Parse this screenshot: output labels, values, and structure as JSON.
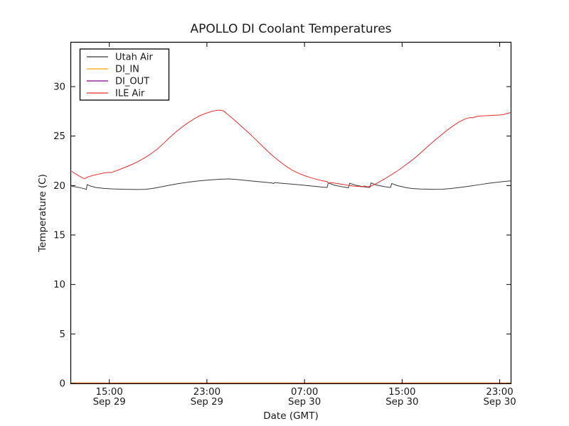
{
  "figure": {
    "background": "#ffffff",
    "axis_color": "#000000",
    "text_color": "#1a1a1a"
  },
  "chart_data": {
    "type": "line",
    "title": "APOLLO DI Coolant Temperatures",
    "xlabel": "Date (GMT)",
    "ylabel": "Temperature (C)",
    "xlim_hours_from_sep29_0000": [
      11.87,
      47.9
    ],
    "ylim": [
      0,
      34.45
    ],
    "grid": false,
    "x_ticks": [
      {
        "hours": 15,
        "time": "15:00",
        "date": "Sep 29"
      },
      {
        "hours": 23,
        "time": "23:00",
        "date": "Sep 29"
      },
      {
        "hours": 31,
        "time": "07:00",
        "date": "Sep 30"
      },
      {
        "hours": 39,
        "time": "15:00",
        "date": "Sep 30"
      },
      {
        "hours": 47,
        "time": "23:00",
        "date": "Sep 30"
      }
    ],
    "y_ticks": [
      0,
      5,
      10,
      15,
      20,
      25,
      30
    ],
    "legend": {
      "position": "upper-left",
      "entries": [
        "Utah Air",
        "DI_IN",
        "DI_OUT",
        "ILE Air"
      ]
    },
    "series": [
      {
        "name": "Utah Air",
        "color": "#3a3a3a",
        "points": [
          [
            11.9,
            19.93
          ],
          [
            12.3,
            19.85
          ],
          [
            12.7,
            19.76
          ],
          [
            13.0,
            19.66
          ],
          [
            13.12,
            19.6
          ],
          [
            13.18,
            20.1
          ],
          [
            13.45,
            19.95
          ],
          [
            13.9,
            19.8
          ],
          [
            14.5,
            19.72
          ],
          [
            15.3,
            19.66
          ],
          [
            16.3,
            19.62
          ],
          [
            17.4,
            19.6
          ],
          [
            18.0,
            19.62
          ],
          [
            18.6,
            19.72
          ],
          [
            19.3,
            19.88
          ],
          [
            20.0,
            20.05
          ],
          [
            20.7,
            20.2
          ],
          [
            21.5,
            20.35
          ],
          [
            22.3,
            20.46
          ],
          [
            23.1,
            20.55
          ],
          [
            24.0,
            20.63
          ],
          [
            24.8,
            20.67
          ],
          [
            25.4,
            20.62
          ],
          [
            26.2,
            20.52
          ],
          [
            27.0,
            20.42
          ],
          [
            27.8,
            20.33
          ],
          [
            28.35,
            20.26
          ],
          [
            28.45,
            20.2
          ],
          [
            28.55,
            20.3
          ],
          [
            29.2,
            20.22
          ],
          [
            30.0,
            20.14
          ],
          [
            30.8,
            20.05
          ],
          [
            31.6,
            19.95
          ],
          [
            32.4,
            19.85
          ],
          [
            32.85,
            19.8
          ],
          [
            32.95,
            20.28
          ],
          [
            33.4,
            20.05
          ],
          [
            34.2,
            19.85
          ],
          [
            34.6,
            19.78
          ],
          [
            34.7,
            20.23
          ],
          [
            35.2,
            20.03
          ],
          [
            35.9,
            19.86
          ],
          [
            36.35,
            19.8
          ],
          [
            36.45,
            20.26
          ],
          [
            36.9,
            20.05
          ],
          [
            37.6,
            19.88
          ],
          [
            38.05,
            19.8
          ],
          [
            38.15,
            20.2
          ],
          [
            38.6,
            20.0
          ],
          [
            39.3,
            19.8
          ],
          [
            39.8,
            19.7
          ],
          [
            40.5,
            19.65
          ],
          [
            41.5,
            19.62
          ],
          [
            42.3,
            19.63
          ],
          [
            43.0,
            19.7
          ],
          [
            43.8,
            19.82
          ],
          [
            44.6,
            19.95
          ],
          [
            45.4,
            20.1
          ],
          [
            46.2,
            20.25
          ],
          [
            46.9,
            20.35
          ],
          [
            47.5,
            20.43
          ],
          [
            47.9,
            20.47
          ]
        ]
      },
      {
        "name": "DI_IN",
        "color": "#ffa500",
        "points": [
          [
            11.87,
            0.0
          ],
          [
            47.9,
            0.0
          ]
        ]
      },
      {
        "name": "DI_OUT",
        "color": "#800080",
        "points": [
          [
            11.87,
            0.0
          ],
          [
            47.9,
            0.0
          ]
        ]
      },
      {
        "name": "ILE Air",
        "color": "#ee2c2c",
        "points": [
          [
            11.9,
            21.45
          ],
          [
            12.2,
            21.2
          ],
          [
            12.55,
            20.95
          ],
          [
            12.85,
            20.75
          ],
          [
            13.0,
            20.7
          ],
          [
            13.2,
            20.85
          ],
          [
            13.6,
            21.0
          ],
          [
            14.1,
            21.15
          ],
          [
            14.6,
            21.28
          ],
          [
            14.95,
            21.33
          ],
          [
            15.1,
            21.3
          ],
          [
            15.4,
            21.42
          ],
          [
            15.9,
            21.65
          ],
          [
            16.4,
            21.9
          ],
          [
            16.9,
            22.15
          ],
          [
            17.4,
            22.45
          ],
          [
            17.9,
            22.8
          ],
          [
            18.4,
            23.2
          ],
          [
            18.9,
            23.65
          ],
          [
            19.4,
            24.2
          ],
          [
            19.9,
            24.8
          ],
          [
            20.4,
            25.35
          ],
          [
            20.9,
            25.85
          ],
          [
            21.4,
            26.3
          ],
          [
            21.9,
            26.7
          ],
          [
            22.4,
            27.05
          ],
          [
            22.9,
            27.3
          ],
          [
            23.4,
            27.5
          ],
          [
            23.8,
            27.6
          ],
          [
            24.1,
            27.62
          ],
          [
            24.35,
            27.55
          ],
          [
            24.6,
            27.3
          ],
          [
            25.0,
            26.9
          ],
          [
            25.5,
            26.35
          ],
          [
            26.0,
            25.8
          ],
          [
            26.5,
            25.25
          ],
          [
            27.0,
            24.65
          ],
          [
            27.5,
            24.05
          ],
          [
            28.0,
            23.45
          ],
          [
            28.5,
            22.9
          ],
          [
            29.0,
            22.4
          ],
          [
            29.5,
            21.95
          ],
          [
            30.0,
            21.55
          ],
          [
            30.5,
            21.25
          ],
          [
            31.0,
            21.0
          ],
          [
            31.5,
            20.8
          ],
          [
            32.0,
            20.62
          ],
          [
            32.5,
            20.48
          ],
          [
            32.85,
            20.4
          ],
          [
            32.95,
            20.25
          ],
          [
            33.2,
            20.3
          ],
          [
            33.6,
            20.22
          ],
          [
            34.1,
            20.12
          ],
          [
            34.6,
            20.02
          ],
          [
            35.0,
            19.95
          ],
          [
            35.4,
            19.92
          ],
          [
            35.7,
            19.87
          ],
          [
            35.9,
            19.97
          ],
          [
            36.1,
            19.88
          ],
          [
            36.4,
            19.92
          ],
          [
            36.7,
            20.08
          ],
          [
            37.0,
            20.28
          ],
          [
            37.4,
            20.55
          ],
          [
            37.8,
            20.85
          ],
          [
            38.2,
            21.15
          ],
          [
            38.7,
            21.55
          ],
          [
            39.2,
            22.0
          ],
          [
            39.7,
            22.45
          ],
          [
            40.2,
            22.95
          ],
          [
            40.7,
            23.5
          ],
          [
            41.2,
            24.05
          ],
          [
            41.7,
            24.6
          ],
          [
            42.2,
            25.1
          ],
          [
            42.7,
            25.6
          ],
          [
            43.2,
            26.05
          ],
          [
            43.7,
            26.45
          ],
          [
            44.2,
            26.75
          ],
          [
            44.6,
            26.88
          ],
          [
            44.8,
            26.85
          ],
          [
            45.0,
            26.95
          ],
          [
            45.3,
            27.02
          ],
          [
            45.7,
            27.05
          ],
          [
            46.1,
            27.08
          ],
          [
            46.5,
            27.1
          ],
          [
            46.9,
            27.12
          ],
          [
            47.3,
            27.18
          ],
          [
            47.6,
            27.28
          ],
          [
            47.9,
            27.38
          ]
        ]
      }
    ]
  }
}
